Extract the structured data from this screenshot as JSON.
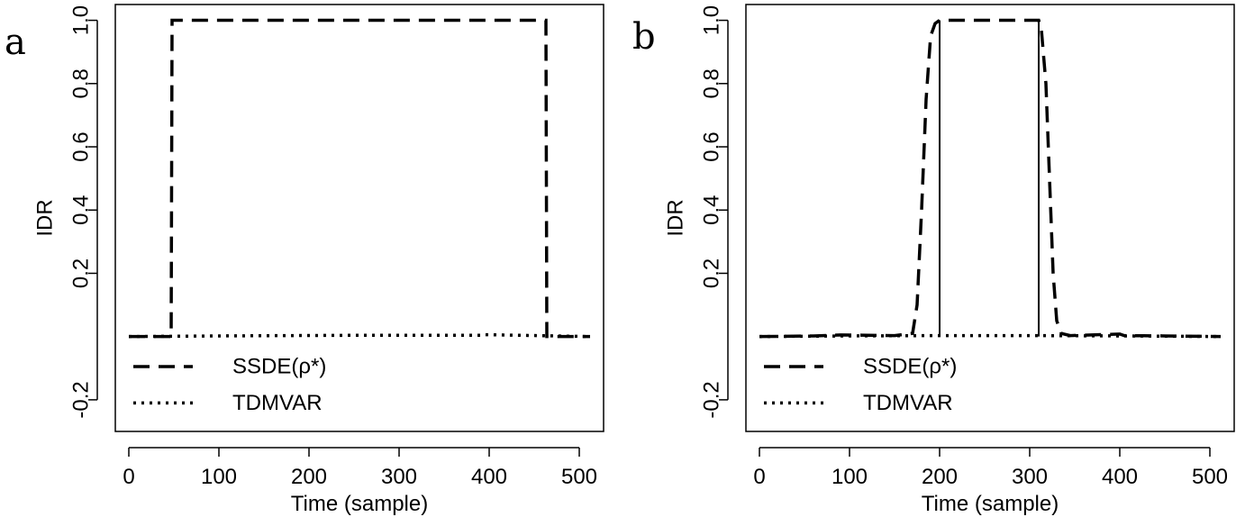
{
  "chart_data": [
    {
      "type": "line",
      "panel_label": "a",
      "xlabel": "Time (sample)",
      "ylabel": "IDR",
      "xlim": [
        -15,
        527
      ],
      "ylim": [
        -0.3,
        1.05
      ],
      "xticks": [
        0,
        100,
        200,
        300,
        400,
        500
      ],
      "yticks": [
        -0.2,
        0.2,
        0.4,
        0.6,
        0.8,
        1.0
      ],
      "ytick_labels": [
        "-0.2",
        "0.2",
        "0.4",
        "0.6",
        "0.8",
        "1.0"
      ],
      "legend_position": "bottom-left",
      "series": [
        {
          "name": "SSDE(ρ*)",
          "style": "dashed",
          "x": [
            0,
            47,
            48,
            300,
            463,
            464,
            512
          ],
          "y": [
            0,
            0,
            1,
            1,
            1,
            0,
            0
          ]
        },
        {
          "name": "TDMVAR",
          "style": "dotted",
          "x": [
            0,
            100,
            250,
            390,
            395,
            512
          ],
          "y": [
            0,
            0.002,
            0.004,
            0.004,
            0.006,
            0
          ]
        }
      ],
      "extra_lines": []
    },
    {
      "type": "line",
      "panel_label": "b",
      "xlabel": "Time (sample)",
      "ylabel": "IDR",
      "xlim": [
        -15,
        527
      ],
      "ylim": [
        -0.3,
        1.05
      ],
      "xticks": [
        0,
        100,
        200,
        300,
        400,
        500
      ],
      "yticks": [
        -0.2,
        0.2,
        0.4,
        0.6,
        0.8,
        1.0
      ],
      "ytick_labels": [
        "-0.2",
        "0.2",
        "0.4",
        "0.6",
        "0.8",
        "1.0"
      ],
      "legend_position": "bottom-left",
      "series": [
        {
          "name": "SSDE(ρ*)",
          "style": "dashed",
          "x": [
            0,
            60,
            90,
            150,
            170,
            175,
            180,
            185,
            190,
            195,
            200,
            220,
            300,
            310,
            313,
            318,
            322,
            326,
            330,
            335,
            345,
            400,
            405,
            450,
            512
          ],
          "y": [
            0,
            0.002,
            0.005,
            0.003,
            0.01,
            0.1,
            0.4,
            0.75,
            0.95,
            0.99,
            1.0,
            1.0,
            1.0,
            1.0,
            0.97,
            0.8,
            0.5,
            0.2,
            0.05,
            0.01,
            0.003,
            0.008,
            0.003,
            0.002,
            0
          ]
        },
        {
          "name": "TDMVAR",
          "style": "dotted",
          "x": [
            0,
            100,
            200,
            300,
            400,
            512
          ],
          "y": [
            0,
            0.002,
            0.003,
            0.003,
            0.002,
            0
          ]
        }
      ],
      "extra_lines": [
        {
          "style": "solid",
          "x": [
            200,
            200
          ],
          "y": [
            0,
            1.0
          ]
        },
        {
          "style": "solid",
          "x": [
            310,
            310
          ],
          "y": [
            0,
            1.0
          ]
        }
      ]
    }
  ]
}
